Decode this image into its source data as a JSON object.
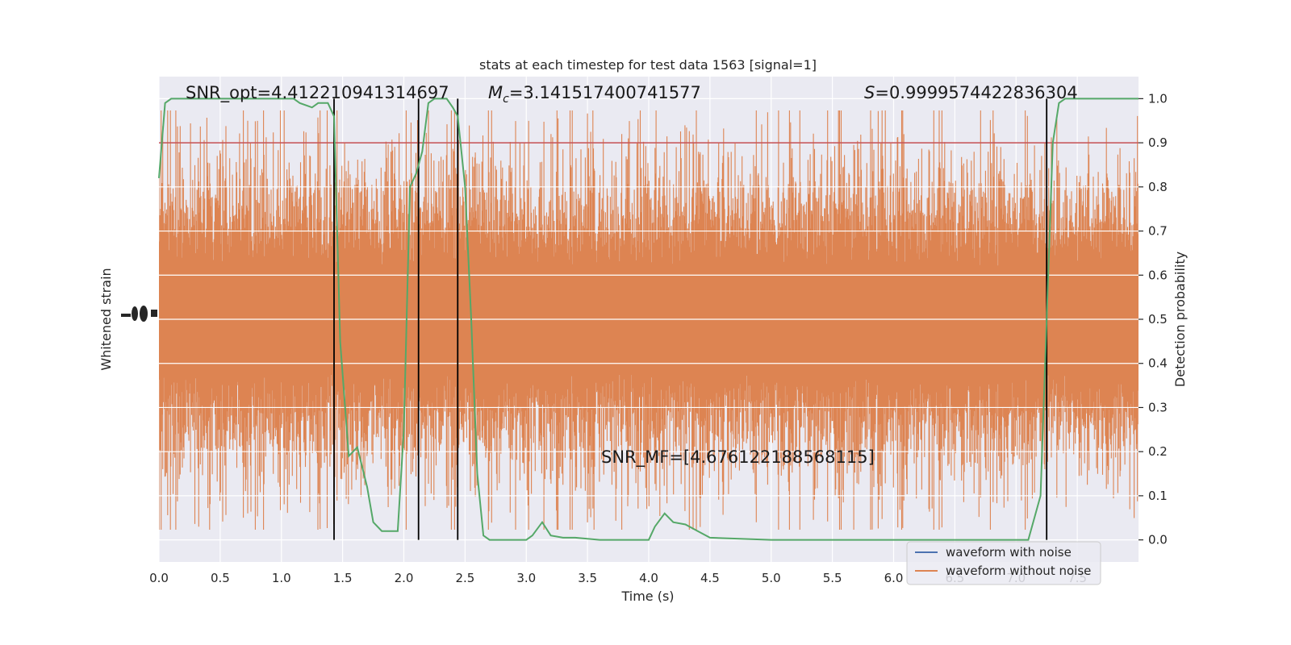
{
  "chart_data": {
    "type": "line",
    "title": "stats at each timestep for test data 1563 [signal=1]",
    "xlabel": "Time (s)",
    "ylabel_left": "Whitened strain",
    "ylabel_right": "Detection probability",
    "xlim": [
      0,
      8
    ],
    "ylim_right": [
      -0.05,
      1.05
    ],
    "x_ticks": [
      "0.0",
      "0.5",
      "1.0",
      "1.5",
      "2.0",
      "2.5",
      "3.0",
      "3.5",
      "4.0",
      "4.5",
      "5.0",
      "5.5",
      "6.0",
      "6.5",
      "7.0",
      "7.5"
    ],
    "y_right_ticks": [
      "0.0",
      "0.1",
      "0.2",
      "0.3",
      "0.4",
      "0.5",
      "0.6",
      "0.7",
      "0.8",
      "0.9",
      "1.0"
    ],
    "grid": true,
    "threshold": 0.9,
    "detection_lines_x": [
      1.43,
      2.12,
      2.44,
      7.25
    ],
    "detection_probability": {
      "x": [
        0.0,
        0.05,
        0.1,
        0.2,
        0.3,
        0.5,
        0.8,
        1.0,
        1.1,
        1.15,
        1.25,
        1.3,
        1.38,
        1.43,
        1.48,
        1.55,
        1.62,
        1.7,
        1.75,
        1.82,
        1.9,
        1.95,
        2.0,
        2.05,
        2.1,
        2.15,
        2.2,
        2.25,
        2.3,
        2.35,
        2.4,
        2.44,
        2.5,
        2.55,
        2.6,
        2.65,
        2.7,
        2.8,
        3.0,
        3.05,
        3.13,
        3.2,
        3.3,
        3.4,
        3.6,
        4.0,
        4.05,
        4.13,
        4.2,
        4.3,
        4.4,
        4.5,
        5.0,
        5.5,
        6.0,
        6.5,
        7.0,
        7.1,
        7.2,
        7.25,
        7.3,
        7.35,
        7.4,
        7.5,
        8.0
      ],
      "y": [
        0.82,
        0.99,
        1.0,
        1.0,
        1.0,
        1.0,
        1.0,
        1.0,
        1.0,
        0.99,
        0.98,
        0.99,
        0.99,
        0.96,
        0.45,
        0.19,
        0.21,
        0.12,
        0.04,
        0.02,
        0.02,
        0.02,
        0.25,
        0.8,
        0.83,
        0.88,
        0.99,
        1.0,
        1.0,
        1.0,
        0.98,
        0.96,
        0.8,
        0.5,
        0.15,
        0.01,
        0.0,
        0.0,
        0.0,
        0.01,
        0.04,
        0.01,
        0.005,
        0.005,
        0.0,
        0.0,
        0.03,
        0.06,
        0.04,
        0.035,
        0.02,
        0.005,
        0.0,
        0.0,
        0.0,
        0.0,
        0.0,
        0.0,
        0.1,
        0.5,
        0.9,
        0.99,
        1.0,
        1.0,
        1.0
      ]
    },
    "series": [
      {
        "name": "waveform with noise",
        "color": "#4c72b0"
      },
      {
        "name": "waveform without noise",
        "color": "#dd8452"
      }
    ],
    "legend_placement": "lower-right",
    "colors": {
      "background": "#eaeaf2",
      "grid": "#ffffff",
      "detection": "#55a868",
      "threshold": "#c44e52",
      "vlines": "#000000"
    },
    "annotations": {
      "snr_opt": "SNR_opt=4.412210941314697",
      "mc_symbol": "M",
      "mc_sub": "c",
      "mc_value": "=3.141517400741577",
      "s_symbol": "S",
      "s_value": "=0.9999574422836304",
      "snr_mf": "SNR_MF=[4.676122188568115]"
    }
  }
}
